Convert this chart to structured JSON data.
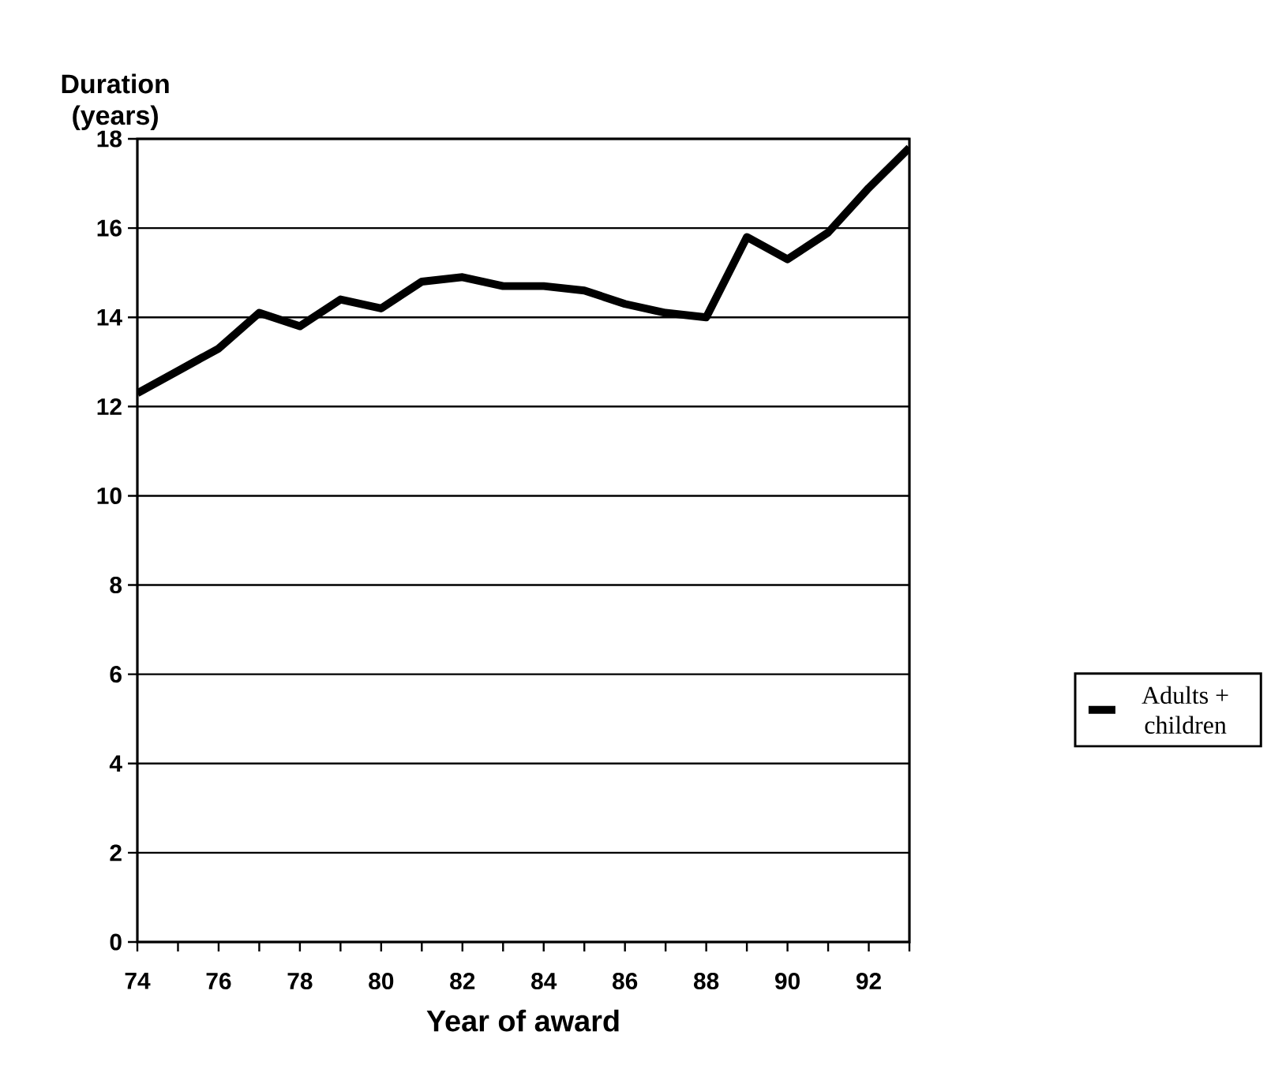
{
  "chart_data": {
    "type": "line",
    "xlabel": "Year of award",
    "ylabel": "Duration (years)",
    "x": [
      74,
      75,
      76,
      77,
      78,
      79,
      80,
      81,
      82,
      83,
      84,
      85,
      86,
      87,
      88,
      89,
      90,
      91,
      92,
      93
    ],
    "series": [
      {
        "name": "Adults + children",
        "color": "#000000",
        "values": [
          12.3,
          12.8,
          13.3,
          14.1,
          13.8,
          14.4,
          14.2,
          14.8,
          14.9,
          14.7,
          14.7,
          14.6,
          14.3,
          14.1,
          14.0,
          15.8,
          15.3,
          15.9,
          16.9,
          17.8
        ]
      }
    ],
    "xlim": [
      74,
      93
    ],
    "ylim": [
      0,
      18
    ],
    "xticks": [
      74,
      {
        "value": 75,
        "label": null
      },
      76,
      {
        "value": 77,
        "label": null
      },
      78,
      {
        "value": 79,
        "label": null
      },
      80,
      {
        "value": 81,
        "label": null
      },
      82,
      {
        "value": 83,
        "label": null
      },
      84,
      {
        "value": 85,
        "label": null
      },
      86,
      {
        "value": 87,
        "label": null
      },
      88,
      {
        "value": 89,
        "label": null
      },
      90,
      {
        "value": 91,
        "label": null
      },
      92,
      {
        "value": 93,
        "label": null
      }
    ],
    "yticks": [
      0,
      2,
      4,
      6,
      8,
      10,
      12,
      14,
      16,
      18
    ],
    "grid": "y",
    "legend": "right",
    "marker": "none",
    "line_style": "solid"
  }
}
